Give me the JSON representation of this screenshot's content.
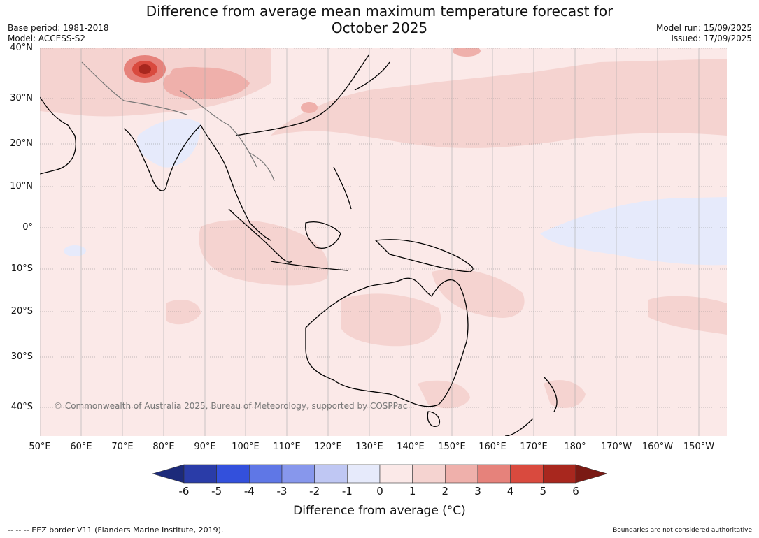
{
  "title_line1": "Difference from average mean maximum temperature forecast for",
  "title_line2": "October 2025",
  "meta_left": [
    "Base period: 1981-2018",
    "Model: ACCESS-S2"
  ],
  "meta_right": [
    "Model run: 15/09/2025",
    "Issued: 17/09/2025"
  ],
  "lat_labels": [
    "40°N",
    "30°N",
    "20°N",
    "10°N",
    "0°",
    "10°S",
    "20°S",
    "30°S",
    "40°S"
  ],
  "lon_labels": [
    "50°E",
    "60°E",
    "70°E",
    "80°E",
    "90°E",
    "100°E",
    "110°E",
    "120°E",
    "130°E",
    "140°E",
    "150°E",
    "160°E",
    "170°E",
    "180°",
    "170°W",
    "160°W",
    "150°W"
  ],
  "copyright": "© Commonwealth of Australia 2025, Bureau of Meteorology, supported by COSPPac",
  "colorbar": {
    "ticks": [
      "-6",
      "-5",
      "-4",
      "-3",
      "-2",
      "-1",
      "0",
      "1",
      "2",
      "3",
      "4",
      "5",
      "6"
    ],
    "colors": [
      "#1c2a7a",
      "#2a3ca8",
      "#3350dc",
      "#5f77e6",
      "#8797ec",
      "#bfc7f3",
      "#e6eafb",
      "#fbe9e8",
      "#f5d3d0",
      "#efb0ab",
      "#e6827b",
      "#d94a3e",
      "#a8271e",
      "#7a1a14"
    ],
    "label": "Difference from average (°C)"
  },
  "footer_left": "--  --  -- EEZ border V11 (Flanders Marine Institute, 2019).",
  "footer_right": "Boundaries are not considered authoritative"
}
